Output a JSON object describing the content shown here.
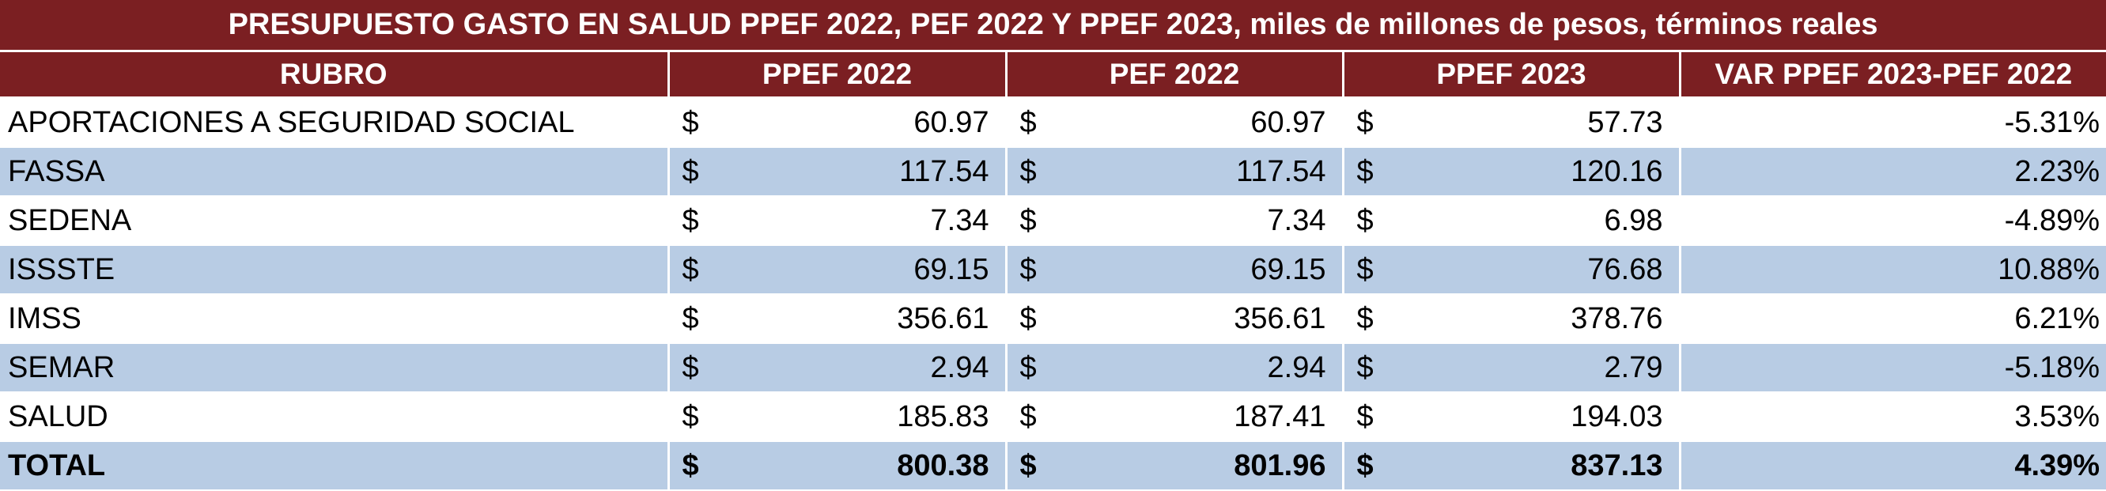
{
  "title": "PRESUPUESTO GASTO EN SALUD PPEF 2022, PEF 2022 Y PPEF 2023, miles de millones de pesos, términos reales",
  "columns": [
    "RUBRO",
    "PPEF 2022",
    "PEF 2022",
    "PPEF 2023",
    "VAR PPEF 2023-PEF 2022"
  ],
  "currency_symbol": "$",
  "colors": {
    "header_bg": "#7b1f22",
    "header_text": "#ffffff",
    "band_bg": "#b8cce4",
    "plain_bg": "#ffffff"
  },
  "rows": [
    {
      "rubro": "APORTACIONES A SEGURIDAD SOCIAL",
      "ppef2022": "60.97",
      "pef2022": "60.97",
      "ppef2023": "57.73",
      "var": "-5.31%"
    },
    {
      "rubro": "FASSA",
      "ppef2022": "117.54",
      "pef2022": "117.54",
      "ppef2023": "120.16",
      "var": "2.23%"
    },
    {
      "rubro": "SEDENA",
      "ppef2022": "7.34",
      "pef2022": "7.34",
      "ppef2023": "6.98",
      "var": "-4.89%"
    },
    {
      "rubro": "ISSSTE",
      "ppef2022": "69.15",
      "pef2022": "69.15",
      "ppef2023": "76.68",
      "var": "10.88%"
    },
    {
      "rubro": "IMSS",
      "ppef2022": "356.61",
      "pef2022": "356.61",
      "ppef2023": "378.76",
      "var": "6.21%"
    },
    {
      "rubro": "SEMAR",
      "ppef2022": "2.94",
      "pef2022": "2.94",
      "ppef2023": "2.79",
      "var": "-5.18%"
    },
    {
      "rubro": "SALUD",
      "ppef2022": "185.83",
      "pef2022": "187.41",
      "ppef2023": "194.03",
      "var": "3.53%"
    }
  ],
  "total": {
    "rubro": "TOTAL",
    "ppef2022": "800.38",
    "pef2022": "801.96",
    "ppef2023": "837.13",
    "var": "4.39%"
  }
}
